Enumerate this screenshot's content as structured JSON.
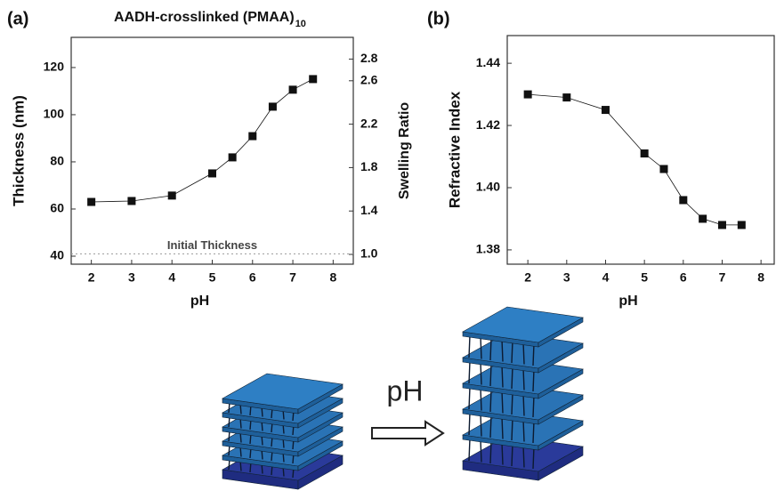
{
  "chart_data": [
    {
      "type": "line",
      "panel_label": "(a)",
      "title": "AADH-crosslinked (PMAA)",
      "title_subscript": "10",
      "x_label": "pH",
      "y_label": "Thickness (nm)",
      "y2_label": "Swelling Ratio",
      "xlim": [
        1.5,
        8.5
      ],
      "xticks": [
        2,
        3,
        4,
        5,
        6,
        7,
        8
      ],
      "ylim": [
        36.6,
        132.8
      ],
      "yticks": [
        40,
        60,
        80,
        100,
        120
      ],
      "y2lim": [
        0.91,
        3.0
      ],
      "y2ticks": [
        {
          "value": 1,
          "label": "1.0"
        },
        1.4,
        1.8,
        2.2,
        2.6,
        2.8
      ],
      "x": [
        2,
        3,
        4,
        5,
        5.5,
        6,
        6.5,
        7,
        7.5
      ],
      "values": [
        63.0,
        63.4,
        65.7,
        75.1,
        81.9,
        90.9,
        103.4,
        110.6,
        115.1
      ],
      "color": "#111111",
      "reference_line": {
        "value": 41,
        "label": "Initial Thickness"
      }
    },
    {
      "type": "line",
      "panel_label": "(b)",
      "x_label": "pH",
      "y_label": "Refractive Index",
      "xlim": [
        1.47,
        8.34
      ],
      "xticks": [
        2,
        3,
        4,
        5,
        6,
        7,
        8
      ],
      "ylim": [
        1.3754,
        1.4489
      ],
      "yticks": [
        1.38,
        {
          "value": 1.4,
          "label": "1.40"
        },
        1.42,
        1.44
      ],
      "x": [
        2,
        3,
        4,
        5,
        5.5,
        6,
        6.5,
        7,
        7.5
      ],
      "values": [
        1.43,
        1.429,
        1.425,
        1.411,
        1.406,
        1.396,
        1.39,
        1.388,
        1.388
      ],
      "color": "#111111"
    }
  ],
  "schematic": {
    "label": "pH"
  }
}
